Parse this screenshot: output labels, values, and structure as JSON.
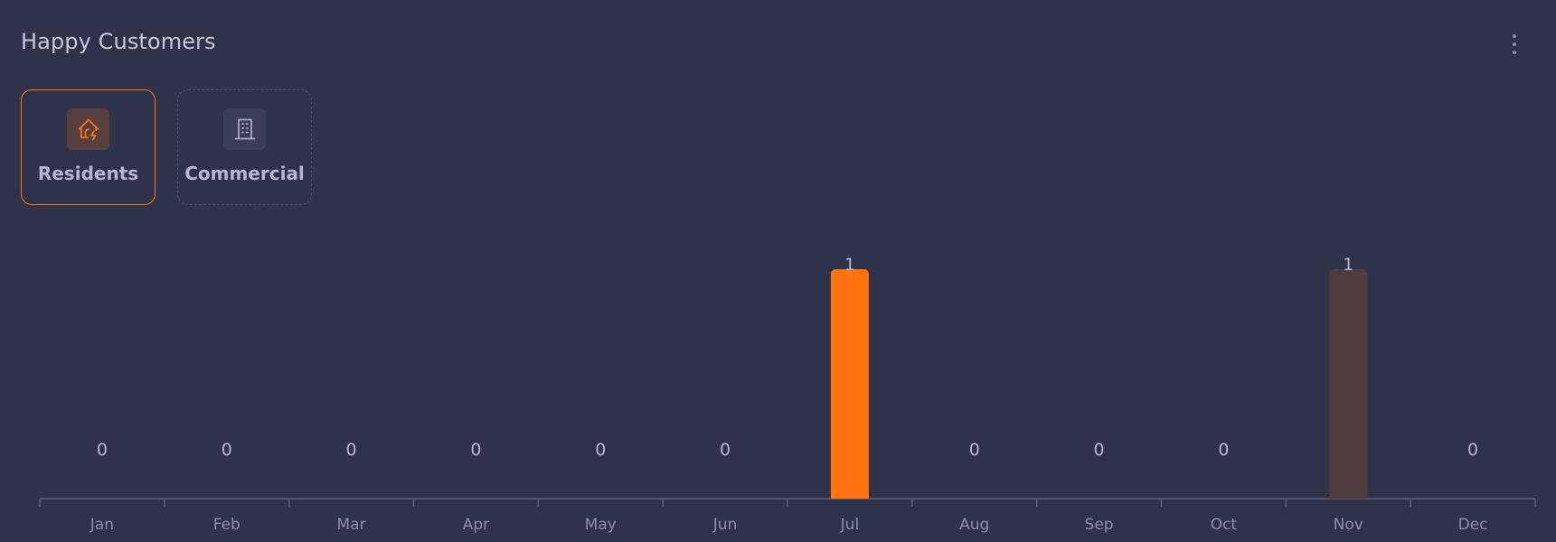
{
  "header": {
    "title": "Happy Customers",
    "menu_icon": "more-vertical-icon"
  },
  "tabs": [
    {
      "label": "Residents",
      "icon": "house-bolt-icon",
      "active": true
    },
    {
      "label": "Commercial",
      "icon": "building-icon",
      "active": false
    }
  ],
  "colors": {
    "background": "#2f3349",
    "accent": "#ff7310",
    "accent_muted": "#4f3c3f",
    "axis": "#5b5f78",
    "label": "#b4b7cf"
  },
  "chart_data": {
    "type": "bar",
    "title": "",
    "xlabel": "",
    "ylabel": "",
    "categories": [
      "Jan",
      "Feb",
      "Mar",
      "Apr",
      "May",
      "Jun",
      "Jul",
      "Aug",
      "Sep",
      "Oct",
      "Nov",
      "Dec"
    ],
    "values": [
      0,
      0,
      0,
      0,
      0,
      0,
      1,
      0,
      0,
      0,
      1,
      0
    ],
    "highlight_index": 6,
    "ylim": [
      0,
      1
    ],
    "grid": false,
    "data_labels": true
  }
}
